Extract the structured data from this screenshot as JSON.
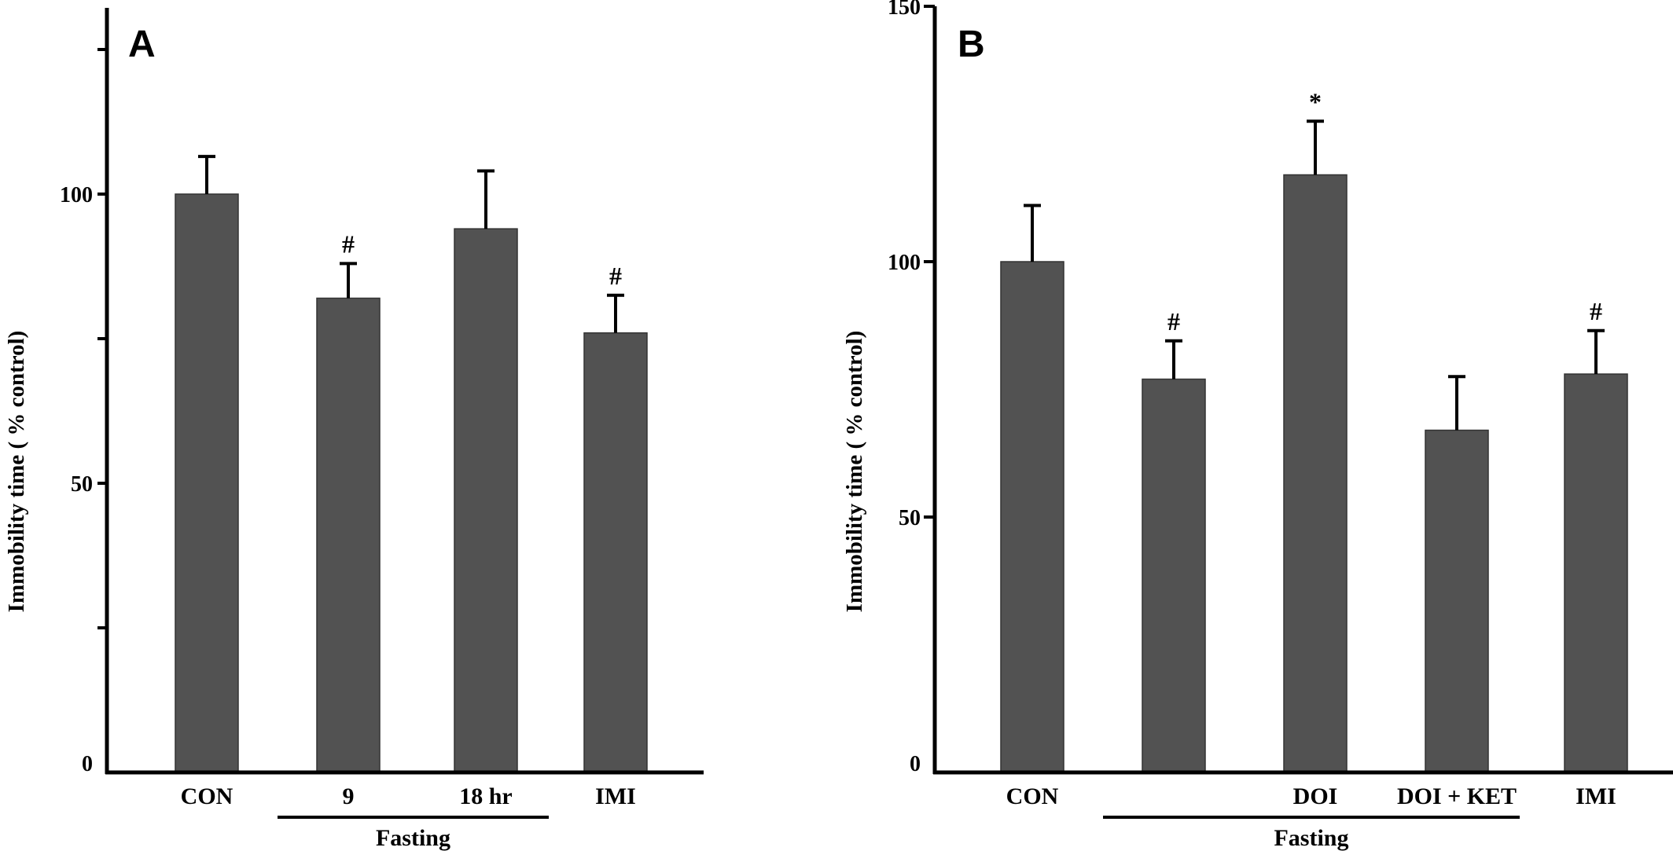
{
  "chart_data": [
    {
      "type": "bar",
      "panel": "A",
      "ylabel": "Immobility  time  ( % control)",
      "ylim": [
        0,
        129
      ],
      "yticks": [
        0,
        25,
        50,
        75,
        100,
        125
      ],
      "ytick_labels": [
        "0",
        "",
        "50",
        "",
        "100",
        ""
      ],
      "categories": [
        "CON",
        "9",
        "18 hr",
        "IMI"
      ],
      "values": [
        100,
        82,
        94,
        76
      ],
      "errors": [
        6.5,
        6,
        10,
        6.5
      ],
      "annotations": [
        "",
        "#",
        "",
        "#"
      ],
      "group_label": "Fasting",
      "group_span": [
        1,
        2
      ]
    },
    {
      "type": "bar",
      "panel": "B",
      "ylabel": "Immobility  time  ( % control)",
      "ylim": [
        0,
        150
      ],
      "yticks": [
        0,
        50,
        100,
        150
      ],
      "ytick_labels": [
        "0",
        "50",
        "100",
        "150"
      ],
      "categories": [
        "CON",
        "",
        "DOI",
        "DOI + KET",
        "IMI"
      ],
      "values": [
        100,
        77,
        117,
        67,
        78
      ],
      "errors": [
        11,
        7.5,
        10.5,
        10.5,
        8.5
      ],
      "annotations": [
        "",
        "#",
        "*",
        "",
        "#"
      ],
      "group_label": "Fasting",
      "group_span": [
        1,
        3
      ]
    }
  ]
}
